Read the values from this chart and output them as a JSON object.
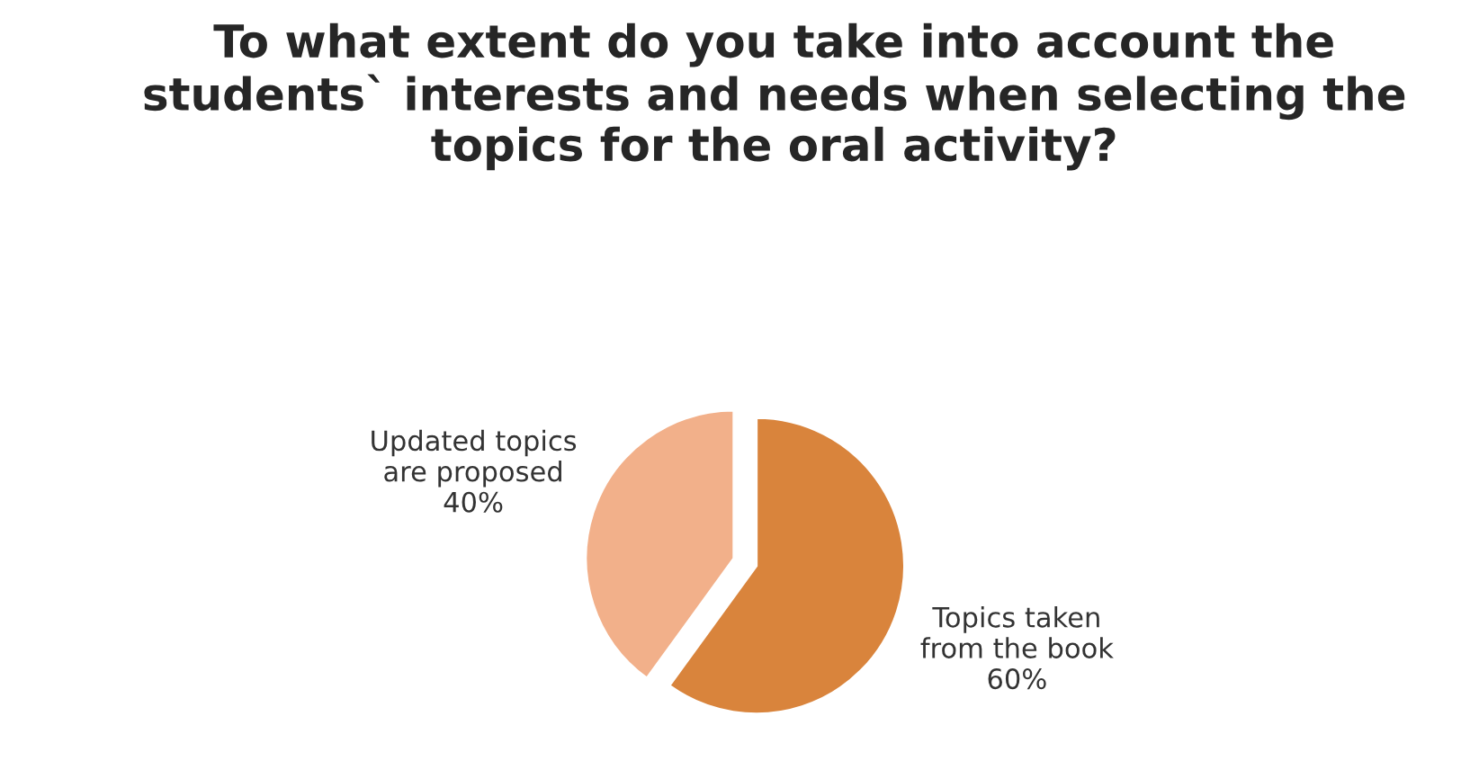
{
  "chart_data": {
    "type": "pie",
    "title": "To what extent do you take into account the students` interests and needs when selecting the topics for the oral activity?",
    "categories": [
      "Topics taken\nfrom the book",
      "Updated topics\nare proposed"
    ],
    "values": [
      60,
      40
    ],
    "value_labels": [
      "60%",
      "40%"
    ],
    "colors": [
      "#d9843c",
      "#f2b08a"
    ],
    "legend": false
  }
}
